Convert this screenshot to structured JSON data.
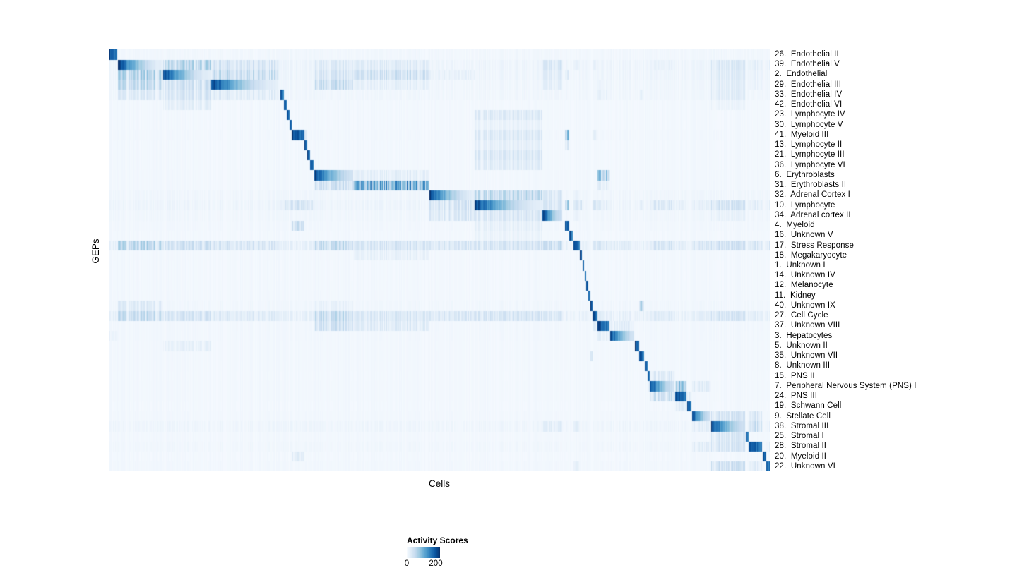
{
  "figure": {
    "xlabel": "Cells",
    "ylabel": "GEPs"
  },
  "legend": {
    "title": "Activity Scores",
    "tick_labels": [
      "0",
      "200"
    ]
  },
  "chart_data": {
    "type": "heatmap",
    "title": "",
    "xlabel": "Cells",
    "ylabel": "GEPs",
    "n_cols": 936,
    "value_range": [
      0,
      220
    ],
    "colorbar": {
      "title": "Activity Scores",
      "ticks": [
        0,
        200
      ],
      "tick_labels": [
        "0",
        "200"
      ]
    },
    "colormap": {
      "name": "Blues",
      "stops": [
        "#f7fbff",
        "#deebf7",
        "#c6dbef",
        "#9ecae1",
        "#6baed6",
        "#4292c6",
        "#2171b5",
        "#08519c",
        "#08306b"
      ]
    },
    "col_groups": [
      [
        0,
        12
      ],
      [
        13,
        76
      ],
      [
        77,
        145
      ],
      [
        145,
        240
      ],
      [
        243,
        248
      ],
      [
        248,
        252
      ],
      [
        252,
        256
      ],
      [
        256,
        259
      ],
      [
        259,
        277
      ],
      [
        277,
        281
      ],
      [
        281,
        285
      ],
      [
        285,
        290
      ],
      [
        291,
        346
      ],
      [
        346,
        454
      ],
      [
        454,
        518
      ],
      [
        518,
        614
      ],
      [
        614,
        642
      ],
      [
        646,
        652
      ],
      [
        652,
        657
      ],
      [
        658,
        667
      ],
      [
        667,
        670
      ],
      [
        671,
        673
      ],
      [
        674,
        676
      ],
      [
        676,
        679
      ],
      [
        679,
        682
      ],
      [
        682,
        685
      ],
      [
        685,
        692
      ],
      [
        692,
        709
      ],
      [
        710,
        744
      ],
      [
        745,
        751
      ],
      [
        751,
        758
      ],
      [
        759,
        763
      ],
      [
        763,
        766
      ],
      [
        766,
        801
      ],
      [
        802,
        818
      ],
      [
        819,
        825
      ],
      [
        826,
        852
      ],
      [
        853,
        901
      ],
      [
        902,
        906
      ],
      [
        906,
        925
      ],
      [
        926,
        931
      ],
      [
        931,
        936
      ]
    ],
    "rows": [
      {
        "label": "26.  Endothelial II",
        "noise": 6,
        "cells": [
          [
            0,
            205
          ]
        ]
      },
      {
        "label": "39.  Endothelial V",
        "noise": 10,
        "cells": [
          [
            1,
            205
          ],
          [
            2,
            60
          ],
          [
            3,
            45
          ],
          [
            12,
            28
          ],
          [
            13,
            35
          ],
          [
            16,
            30
          ],
          [
            19,
            20
          ],
          [
            26,
            20
          ],
          [
            33,
            15
          ],
          [
            37,
            40
          ],
          [
            39,
            25
          ],
          [
            41,
            20
          ]
        ]
      },
      {
        "label": "2.  Endothelial",
        "noise": 10,
        "cells": [
          [
            1,
            70
          ],
          [
            2,
            205
          ],
          [
            3,
            50
          ],
          [
            12,
            35
          ],
          [
            13,
            40
          ],
          [
            14,
            20
          ],
          [
            16,
            25
          ],
          [
            17,
            25
          ],
          [
            37,
            25
          ],
          [
            39,
            15
          ]
        ]
      },
      {
        "label": "29.  Endothelial III",
        "noise": 9,
        "cells": [
          [
            1,
            55
          ],
          [
            2,
            55
          ],
          [
            3,
            205
          ],
          [
            12,
            55
          ],
          [
            13,
            25
          ],
          [
            16,
            20
          ],
          [
            27,
            15
          ],
          [
            37,
            30
          ],
          [
            39,
            20
          ]
        ]
      },
      {
        "label": "33.  Endothelial IV",
        "noise": 7,
        "cells": [
          [
            1,
            30
          ],
          [
            2,
            35
          ],
          [
            3,
            25
          ],
          [
            4,
            205
          ],
          [
            27,
            20
          ],
          [
            30,
            20
          ],
          [
            37,
            25
          ]
        ]
      },
      {
        "label": "42.  Endothelial VI",
        "noise": 5,
        "cells": [
          [
            2,
            20
          ],
          [
            5,
            205
          ],
          [
            37,
            15
          ]
        ]
      },
      {
        "label": "23.  Lymphocyte IV",
        "noise": 4,
        "cells": [
          [
            6,
            205
          ],
          [
            15,
            25
          ]
        ]
      },
      {
        "label": "30.  Lymphocyte V",
        "noise": 4,
        "cells": [
          [
            7,
            205
          ],
          [
            15,
            20
          ]
        ]
      },
      {
        "label": "41.  Myeloid III",
        "noise": 5,
        "cells": [
          [
            8,
            205
          ],
          [
            9,
            40
          ],
          [
            15,
            25
          ],
          [
            17,
            90
          ],
          [
            26,
            15
          ]
        ]
      },
      {
        "label": "13.  Lymphocyte II",
        "noise": 4,
        "cells": [
          [
            9,
            205
          ],
          [
            15,
            25
          ],
          [
            17,
            40
          ]
        ]
      },
      {
        "label": "21.  Lymphocyte III",
        "noise": 4,
        "cells": [
          [
            10,
            205
          ],
          [
            15,
            28
          ]
        ]
      },
      {
        "label": "36.  Lymphocyte VI",
        "noise": 4,
        "cells": [
          [
            11,
            205
          ],
          [
            15,
            22
          ]
        ]
      },
      {
        "label": "6.  Erythroblasts",
        "noise": 5,
        "cells": [
          [
            12,
            205
          ],
          [
            13,
            30
          ],
          [
            27,
            90
          ]
        ]
      },
      {
        "label": "31.  Erythroblasts II",
        "noise": 6,
        "cells": [
          [
            12,
            45
          ],
          [
            13,
            160
          ],
          [
            27,
            25
          ]
        ]
      },
      {
        "label": "32.  Adrenal Cortex I",
        "noise": 7,
        "cells": [
          [
            14,
            205
          ],
          [
            15,
            55
          ],
          [
            16,
            40
          ],
          [
            19,
            15
          ]
        ]
      },
      {
        "label": "10.  Lymphocyte",
        "noise": 12,
        "cells": [
          [
            4,
            30
          ],
          [
            5,
            30
          ],
          [
            6,
            35
          ],
          [
            7,
            35
          ],
          [
            8,
            40
          ],
          [
            9,
            40
          ],
          [
            10,
            35
          ],
          [
            11,
            35
          ],
          [
            14,
            55
          ],
          [
            15,
            205
          ],
          [
            16,
            45
          ],
          [
            17,
            60
          ],
          [
            19,
            35
          ],
          [
            20,
            30
          ],
          [
            26,
            40
          ],
          [
            27,
            30
          ],
          [
            30,
            25
          ],
          [
            33,
            30
          ],
          [
            34,
            25
          ],
          [
            36,
            25
          ],
          [
            37,
            35
          ],
          [
            39,
            30
          ],
          [
            41,
            25
          ]
        ]
      },
      {
        "label": "34.  Adrenal cortex II",
        "noise": 7,
        "cells": [
          [
            14,
            45
          ],
          [
            15,
            40
          ],
          [
            16,
            205
          ],
          [
            19,
            20
          ],
          [
            37,
            20
          ]
        ]
      },
      {
        "label": "4.  Myeloid",
        "noise": 5,
        "cells": [
          [
            8,
            45
          ],
          [
            15,
            25
          ],
          [
            17,
            205
          ]
        ]
      },
      {
        "label": "16.  Unknown V",
        "noise": 4,
        "cells": [
          [
            15,
            15
          ],
          [
            18,
            205
          ]
        ]
      },
      {
        "label": "17.  Stress Response",
        "noise": 16,
        "cells": [
          [
            1,
            55
          ],
          [
            2,
            50
          ],
          [
            3,
            40
          ],
          [
            12,
            60
          ],
          [
            13,
            40
          ],
          [
            14,
            45
          ],
          [
            15,
            50
          ],
          [
            16,
            45
          ],
          [
            19,
            205
          ],
          [
            26,
            35
          ],
          [
            27,
            30
          ],
          [
            28,
            25
          ],
          [
            33,
            35
          ],
          [
            34,
            25
          ],
          [
            36,
            30
          ],
          [
            37,
            45
          ],
          [
            39,
            40
          ],
          [
            41,
            35
          ]
        ]
      },
      {
        "label": "18.  Megakaryocyte",
        "noise": 5,
        "cells": [
          [
            13,
            20
          ],
          [
            20,
            205
          ]
        ]
      },
      {
        "label": "1.  Unknown I",
        "noise": 3,
        "cells": [
          [
            21,
            205
          ]
        ]
      },
      {
        "label": "14.  Unknown IV",
        "noise": 4,
        "cells": [
          [
            22,
            205
          ]
        ]
      },
      {
        "label": "12.  Melanocyte",
        "noise": 4,
        "cells": [
          [
            23,
            205
          ]
        ]
      },
      {
        "label": "11.  Kidney",
        "noise": 4,
        "cells": [
          [
            24,
            205
          ]
        ]
      },
      {
        "label": "40.  Unknown IX",
        "noise": 6,
        "cells": [
          [
            1,
            25
          ],
          [
            12,
            20
          ],
          [
            25,
            205
          ],
          [
            30,
            60
          ]
        ]
      },
      {
        "label": "27.  Cell Cycle",
        "noise": 14,
        "cells": [
          [
            1,
            60
          ],
          [
            2,
            50
          ],
          [
            3,
            35
          ],
          [
            12,
            60
          ],
          [
            13,
            35
          ],
          [
            14,
            40
          ],
          [
            15,
            50
          ],
          [
            16,
            35
          ],
          [
            26,
            205
          ],
          [
            27,
            30
          ],
          [
            33,
            30
          ],
          [
            36,
            25
          ],
          [
            37,
            30
          ],
          [
            39,
            30
          ]
        ]
      },
      {
        "label": "37.  Unknown VIII",
        "noise": 8,
        "cells": [
          [
            12,
            40
          ],
          [
            13,
            30
          ],
          [
            26,
            30
          ],
          [
            27,
            205
          ],
          [
            28,
            25
          ]
        ]
      },
      {
        "label": "3.  Hepatocytes",
        "noise": 5,
        "cells": [
          [
            0,
            20
          ],
          [
            27,
            25
          ],
          [
            28,
            205
          ]
        ]
      },
      {
        "label": "5.  Unknown II",
        "noise": 4,
        "cells": [
          [
            2,
            20
          ],
          [
            29,
            205
          ]
        ]
      },
      {
        "label": "35.  Unknown VII",
        "noise": 5,
        "cells": [
          [
            25,
            25
          ],
          [
            30,
            205
          ]
        ]
      },
      {
        "label": "8.  Unknown III",
        "noise": 4,
        "cells": [
          [
            31,
            205
          ]
        ]
      },
      {
        "label": "15.  PNS II",
        "noise": 4,
        "cells": [
          [
            32,
            205
          ],
          [
            33,
            30
          ]
        ]
      },
      {
        "label": "7.  Peripheral Nervous System (PNS) I",
        "noise": 6,
        "cells": [
          [
            32,
            20
          ],
          [
            33,
            205
          ],
          [
            34,
            95
          ],
          [
            36,
            25
          ]
        ]
      },
      {
        "label": "24.  PNS III",
        "noise": 5,
        "cells": [
          [
            33,
            50
          ],
          [
            34,
            205
          ],
          [
            35,
            25
          ]
        ]
      },
      {
        "label": "19.  Schwann Cell",
        "noise": 4,
        "cells": [
          [
            34,
            30
          ],
          [
            35,
            205
          ]
        ]
      },
      {
        "label": "9.  Stellate Cell",
        "noise": 6,
        "cells": [
          [
            36,
            205
          ],
          [
            37,
            40
          ],
          [
            39,
            30
          ]
        ]
      },
      {
        "label": "38.  Stromal III",
        "noise": 9,
        "cells": [
          [
            16,
            30
          ],
          [
            19,
            25
          ],
          [
            36,
            30
          ],
          [
            37,
            205
          ],
          [
            39,
            60
          ],
          [
            41,
            25
          ]
        ]
      },
      {
        "label": "25.  Stromal I",
        "noise": 4,
        "cells": [
          [
            37,
            30
          ],
          [
            38,
            205
          ]
        ]
      },
      {
        "label": "28.  Stromal II",
        "noise": 7,
        "cells": [
          [
            36,
            25
          ],
          [
            37,
            45
          ],
          [
            39,
            205
          ],
          [
            41,
            20
          ]
        ]
      },
      {
        "label": "20.  Myeloid II",
        "noise": 4,
        "cells": [
          [
            8,
            20
          ],
          [
            40,
            205
          ]
        ]
      },
      {
        "label": "22.  Unknown VI",
        "noise": 6,
        "cells": [
          [
            19,
            20
          ],
          [
            37,
            40
          ],
          [
            39,
            30
          ],
          [
            41,
            205
          ]
        ]
      }
    ]
  }
}
